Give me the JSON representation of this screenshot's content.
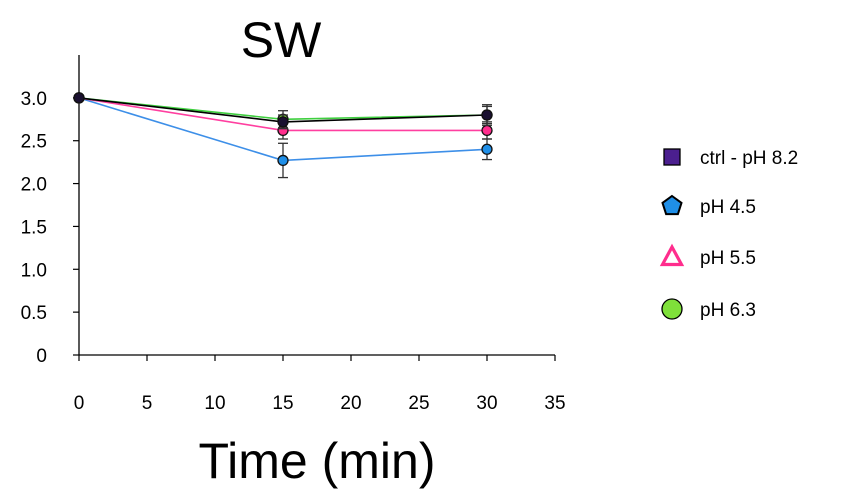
{
  "chart_data": {
    "type": "line",
    "title": "SW",
    "xlabel": "Time (min)",
    "ylabel": "",
    "x": [
      0,
      15,
      30
    ],
    "xlim": [
      0,
      35
    ],
    "ylim": [
      0,
      3.5
    ],
    "xticks": [
      "0",
      "5",
      "10",
      "15",
      "20",
      "25",
      "30",
      "35"
    ],
    "yticks": [
      "0",
      "0.5",
      "1.0",
      "1.5",
      "2.0",
      "2.5",
      "3.0"
    ],
    "grid": false,
    "legend_position": "right",
    "series": [
      {
        "name": "ctrl - pH 8.2",
        "values": [
          3.0,
          2.72,
          2.8
        ],
        "errors": [
          0,
          0.08,
          0.12
        ],
        "color": "#000000",
        "marker": "square",
        "marker_color": "#4b1f8f"
      },
      {
        "name": "pH 4.5",
        "values": [
          3.0,
          2.27,
          2.4
        ],
        "errors": [
          0,
          0.2,
          0.12
        ],
        "color": "#3d8fe8",
        "marker": "pentagon",
        "marker_color": "#1f8fe8"
      },
      {
        "name": "pH 5.5",
        "values": [
          3.0,
          2.62,
          2.62
        ],
        "errors": [
          0,
          0.1,
          0.1
        ],
        "color": "#ff3fa0",
        "marker": "triangle",
        "marker_color": "#ff2d8d"
      },
      {
        "name": "pH 6.3",
        "values": [
          3.0,
          2.75,
          2.8
        ],
        "errors": [
          0,
          0.1,
          0.1
        ],
        "color": "#3fcf3f",
        "marker": "circle",
        "marker_color": "#7fe03a"
      }
    ]
  }
}
